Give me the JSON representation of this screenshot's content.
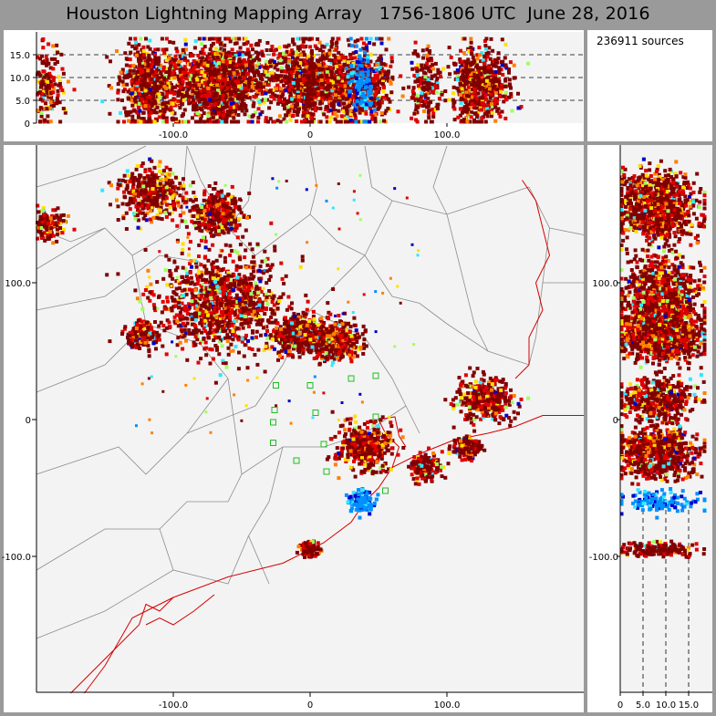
{
  "title": "Houston Lightning Mapping Array   1756-1806 UTC  June 28, 2016",
  "source_count": "236911 sources",
  "axes": {
    "plan_x_ticks": [
      "-100.0",
      "0",
      "100.0"
    ],
    "plan_y_ticks": [
      "100.0",
      "0",
      "-100.0"
    ],
    "alt_ticks": [
      "0",
      "5.0",
      "10.0",
      "15.0"
    ],
    "top_x_ticks": [
      "-100.0",
      "0",
      "100.0"
    ],
    "side_y_ticks": [
      "100.0",
      "0",
      "-100.0"
    ]
  },
  "colors": {
    "frame": "#9a9a9a",
    "panel_bg": "#f3f3f3",
    "county_lines": "#8c8c8c",
    "coastline": "#d40000",
    "station_marker": "#22bb22",
    "density_scale": [
      "#0000c8",
      "#0090ff",
      "#30e8ff",
      "#a0ff60",
      "#ffe000",
      "#ff8000",
      "#e00000",
      "#800000"
    ]
  },
  "chart_data": {
    "type": "scatter",
    "x_range_km": [
      -200,
      200
    ],
    "y_range_km": [
      -200,
      200
    ],
    "altitude_range_km": [
      0,
      20
    ],
    "lightning_clusters": [
      {
        "x": -65,
        "y": 85,
        "spread": 30,
        "density": "very high"
      },
      {
        "x": -115,
        "y": 165,
        "spread": 12,
        "density": "high"
      },
      {
        "x": -67,
        "y": 150,
        "spread": 9,
        "density": "high"
      },
      {
        "x": -192,
        "y": 142,
        "spread": 7,
        "density": "medium"
      },
      {
        "x": -122,
        "y": 62,
        "spread": 6,
        "density": "medium"
      },
      {
        "x": -10,
        "y": 62,
        "spread": 8,
        "density": "high"
      },
      {
        "x": 18,
        "y": 58,
        "spread": 9,
        "density": "high"
      },
      {
        "x": 40,
        "y": -20,
        "spread": 10,
        "density": "high"
      },
      {
        "x": 85,
        "y": -35,
        "spread": 6,
        "density": "medium"
      },
      {
        "x": 128,
        "y": 15,
        "spread": 10,
        "density": "high"
      },
      {
        "x": 115,
        "y": -20,
        "spread": 5,
        "density": "medium"
      },
      {
        "x": 38,
        "y": -60,
        "spread": 5,
        "density": "blue"
      },
      {
        "x": 0,
        "y": -95,
        "spread": 3,
        "density": "medium"
      }
    ],
    "stations": [
      {
        "x": -25,
        "y": 25
      },
      {
        "x": -26,
        "y": 7
      },
      {
        "x": 0,
        "y": 25
      },
      {
        "x": 4,
        "y": 5
      },
      {
        "x": 30,
        "y": 30
      },
      {
        "x": 48,
        "y": 32
      },
      {
        "x": 10,
        "y": -18
      },
      {
        "x": -27,
        "y": -2
      },
      {
        "x": -27,
        "y": -17
      },
      {
        "x": -10,
        "y": -30
      },
      {
        "x": 12,
        "y": -38
      },
      {
        "x": 48,
        "y": 2
      },
      {
        "x": 55,
        "y": -52
      }
    ]
  }
}
